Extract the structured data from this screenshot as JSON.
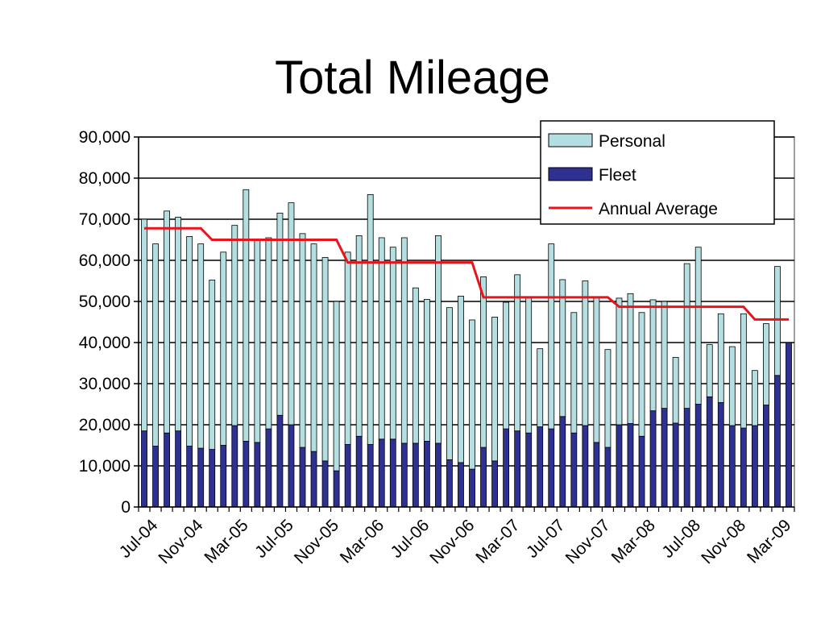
{
  "chart_data": {
    "type": "bar",
    "title": "Total Mileage",
    "xlabel": "",
    "ylabel": "",
    "ylim": [
      0,
      90000
    ],
    "yticks": [
      "0",
      "10,000",
      "20,000",
      "30,000",
      "40,000",
      "50,000",
      "60,000",
      "70,000",
      "80,000",
      "90,000"
    ],
    "stacked": true,
    "grid": true,
    "legend_position": "top-right",
    "x_labels": [
      "Jul-04",
      "Nov-04",
      "Mar-05",
      "Jul-05",
      "Nov-05",
      "Mar-06",
      "Jul-06",
      "Nov-06",
      "Mar-07",
      "Jul-07",
      "Nov-07",
      "Mar-08",
      "Jul-08",
      "Nov-08",
      "Mar-09"
    ],
    "categories": [
      "Jul-04",
      "Aug-04",
      "Sep-04",
      "Oct-04",
      "Nov-04",
      "Dec-04",
      "Jan-05",
      "Feb-05",
      "Mar-05",
      "Apr-05",
      "May-05",
      "Jun-05",
      "Jul-05",
      "Aug-05",
      "Sep-05",
      "Oct-05",
      "Nov-05",
      "Dec-05",
      "Jan-06",
      "Feb-06",
      "Mar-06",
      "Apr-06",
      "May-06",
      "Jun-06",
      "Jul-06",
      "Aug-06",
      "Sep-06",
      "Oct-06",
      "Nov-06",
      "Dec-06",
      "Jan-07",
      "Feb-07",
      "Mar-07",
      "Apr-07",
      "May-07",
      "Jun-07",
      "Jul-07",
      "Aug-07",
      "Sep-07",
      "Oct-07",
      "Nov-07",
      "Dec-07",
      "Jan-08",
      "Feb-08",
      "Mar-08",
      "Apr-08",
      "May-08",
      "Jun-08",
      "Jul-08",
      "Aug-08",
      "Sep-08",
      "Oct-08",
      "Nov-08",
      "Dec-08",
      "Jan-09",
      "Feb-09",
      "Mar-09",
      "Apr-09"
    ],
    "series": [
      {
        "name": "Fleet",
        "color": "#2e3192",
        "values": [
          18500,
          14800,
          18000,
          18500,
          14800,
          14300,
          14000,
          15000,
          19800,
          16000,
          15700,
          19000,
          22300,
          20000,
          14500,
          13500,
          11200,
          8800,
          15200,
          17200,
          15200,
          16500,
          16500,
          15500,
          15500,
          16000,
          15500,
          11500,
          10800,
          9200,
          14500,
          11200,
          19000,
          18500,
          18000,
          19500,
          19000,
          22000,
          18000,
          19800,
          15700,
          14500,
          20000,
          20300,
          17200,
          23400,
          24000,
          20400,
          24000,
          25000,
          26800,
          25400,
          19800,
          19200,
          19800,
          24800,
          32000,
          40000
        ]
      },
      {
        "name": "Personal",
        "color": "#b4dfe0",
        "values": [
          51500,
          49200,
          54000,
          52000,
          51000,
          49700,
          41200,
          47000,
          48700,
          61200,
          49300,
          46500,
          49200,
          54000,
          52000,
          50500,
          49500,
          41200,
          46800,
          48800,
          60800,
          49000,
          46700,
          50000,
          37800,
          34500,
          50500,
          37000,
          40500,
          36300,
          41500,
          35000,
          30800,
          38000,
          33000,
          19000,
          45000,
          33300,
          29300,
          35200,
          35300,
          23800,
          30800,
          31600,
          30100,
          27000,
          26000,
          16000,
          35200,
          38200,
          12700,
          21600,
          19200,
          27800,
          13400,
          19800,
          26500,
          0
        ]
      },
      {
        "name": "Annual Average",
        "color": "#e8141b",
        "type": "line",
        "values": [
          67800,
          67800,
          67800,
          67800,
          67800,
          67800,
          65000,
          65000,
          65000,
          65000,
          65000,
          65000,
          65000,
          65000,
          65000,
          65000,
          65000,
          65000,
          59500,
          59500,
          59500,
          59500,
          59500,
          59500,
          59500,
          59500,
          59500,
          59500,
          59500,
          59500,
          51000,
          51000,
          51000,
          51000,
          51000,
          51000,
          51000,
          51000,
          51000,
          51000,
          51000,
          51000,
          48700,
          48700,
          48700,
          48700,
          48700,
          48700,
          48700,
          48700,
          48700,
          48700,
          48700,
          48700,
          45600,
          45600,
          45600,
          45600
        ]
      }
    ],
    "legend": [
      "Personal",
      "Fleet",
      "Annual Average"
    ]
  }
}
